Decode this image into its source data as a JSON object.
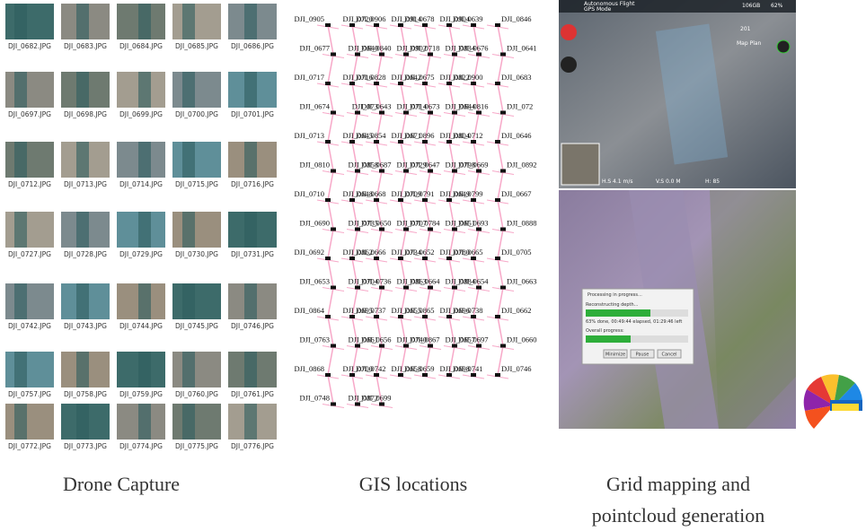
{
  "drone_capture": {
    "images": [
      "DJI_0682.JPG",
      "DJI_0683.JPG",
      "DJI_0684.JPG",
      "DJI_0685.JPG",
      "DJI_0686.JPG",
      "DJI_0697.JPG",
      "DJI_0698.JPG",
      "DJI_0699.JPG",
      "DJI_0700.JPG",
      "DJI_0701.JPG",
      "DJI_0712.JPG",
      "DJI_0713.JPG",
      "DJI_0714.JPG",
      "DJI_0715.JPG",
      "DJI_0716.JPG",
      "DJI_0727.JPG",
      "DJI_0728.JPG",
      "DJI_0729.JPG",
      "DJI_0730.JPG",
      "DJI_0731.JPG",
      "DJI_0742.JPG",
      "DJI_0743.JPG",
      "DJI_0744.JPG",
      "DJI_0745.JPG",
      "DJI_0746.JPG",
      "DJI_0757.JPG",
      "DJI_0758.JPG",
      "DJI_0759.JPG",
      "DJI_0760.JPG",
      "DJI_0761.JPG",
      "DJI_0772.JPG",
      "DJI_0773.JPG",
      "DJI_0774.JPG",
      "DJI_0775.JPG",
      "DJI_0776.JPG"
    ],
    "caption": "Drone Capture"
  },
  "gis": {
    "labels": [
      "DJI_0905",
      "DJI_0906",
      "DJI_0720",
      "DJI_0678",
      "DJI_0914",
      "DJI_0639",
      "DJI_0904",
      "DJI_0846",
      "DJI_0677",
      "DJI_0840",
      "DJI_0640",
      "DJI_0718",
      "DJI_0902",
      "DJI_0676",
      "DJI_0834",
      "DJI_0641",
      "DJI_0717",
      "DJI_0828",
      "DJI_0716",
      "DJI_0675",
      "DJI_0642",
      "DJI_0900",
      "DJI_0822",
      "DJI_0683",
      "DJI_0674",
      "DJI_0643",
      "DJI_073",
      "DJI_0673",
      "DJI_0714",
      "DJI_0816",
      "DJI_0644",
      "DJI_072",
      "DJI_0713",
      "DJI_0854",
      "DJI_0645",
      "DJI_0896",
      "DJI_0671",
      "DJI_0712",
      "DJI_0804",
      "DJI_0646",
      "DJI_0810",
      "DJI_0687",
      "DJI_0858",
      "DJI_0647",
      "DJI_0729",
      "DJI_0669",
      "DJI_0798",
      "DJI_0892",
      "DJI_0710",
      "DJI_0668",
      "DJI_0648",
      "DJI_0791",
      "DJI_0709",
      "DJI_0799",
      "DJI_0649",
      "DJI_0667",
      "DJI_0690",
      "DJI_0650",
      "DJI_0735",
      "DJI_0784",
      "DJI_0707",
      "DJI_0693",
      "DJI_0651",
      "DJI_0888",
      "DJI_0692",
      "DJI_0666",
      "DJI_0862",
      "DJI_0652",
      "DJI_0734",
      "DJI_0665",
      "DJI_0780",
      "DJI_0705",
      "DJI_0653",
      "DJI_0736",
      "DJI_0704",
      "DJI_0664",
      "DJI_0863",
      "DJI_0654",
      "DJI_0884",
      "DJI_0663",
      "DJI_0864",
      "DJI_0737",
      "DJI_0695",
      "DJI_0865",
      "DJI_0655",
      "DJI_0738",
      "DJI_0696",
      "DJI_0662",
      "DJI_0763",
      "DJI_0656",
      "DJI_0661",
      "DJI_0867",
      "DJI_0740",
      "DJI_0697",
      "DJI_0657",
      "DJI_0660",
      "DJI_0868",
      "DJI_0742",
      "DJI_0700",
      "DJI_0659",
      "DJI_0658",
      "DJI_0741",
      "DJI_0698",
      "DJI_0746",
      "DJI_0748",
      "DJI_0699",
      "DJI_0872"
    ],
    "caption": "GIS locations"
  },
  "grid_mapping": {
    "app": {
      "mode": "Autonomous Flight",
      "gps": "GPS Mode",
      "storage": "106GB",
      "battery": "62%",
      "plan": "Map Plan",
      "count": "201",
      "hs": "H.S 4.1 m/s",
      "vs": "V.S 0.0 M",
      "h": "H: 85"
    },
    "dialog": {
      "title": "Processing in progress...",
      "step": "Reconstructing depth...",
      "status": "63% done, 00:49:44 elapsed, 01:29:46 left",
      "overall": "Overall progress:",
      "buttons": [
        "Minimize",
        "Pause",
        "Cancel"
      ]
    },
    "caption": [
      "Grid mapping and",
      "pointcloud generation"
    ]
  }
}
